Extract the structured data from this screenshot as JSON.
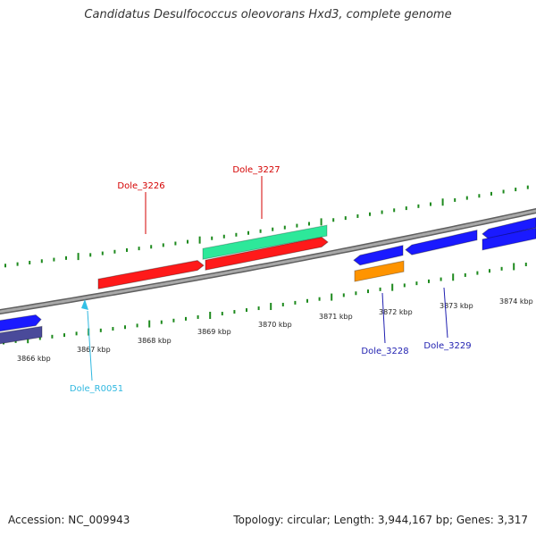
{
  "title": "Candidatus Desulfococcus oleovorans Hxd3, complete genome",
  "footer": {
    "accession": "Accession: NC_009943",
    "summary": "Topology: circular; Length: 3,944,167 bp; Genes: 3,317"
  },
  "colors": {
    "backbone": "#8a8a8a",
    "tick": "#1e8a1e",
    "red_gene": "#ff1a1a",
    "teal_gene": "#2de89a",
    "blue_gene": "#1a1aff",
    "navy_gene": "#4a4a9a",
    "orange_gene": "#ff9400",
    "rna_marker": "#33c0e6",
    "red_label": "#d40000",
    "blue_label": "#1f1fb0",
    "cyan_label": "#30b8e0"
  },
  "chart_data": {
    "type": "genome-map",
    "topology": "circular",
    "scale_unit": "kbp",
    "scale_labels": [
      "3866 kbp",
      "3867 kbp",
      "3868 kbp",
      "3869 kbp",
      "3870 kbp",
      "3871 kbp",
      "3872 kbp",
      "3873 kbp",
      "3874 kbp"
    ],
    "gene_labels": [
      {
        "name": "Dole_3226",
        "color": "red_label"
      },
      {
        "name": "Dole_3227",
        "color": "red_label"
      },
      {
        "name": "Dole_3228",
        "color": "blue_label"
      },
      {
        "name": "Dole_3229",
        "color": "blue_label"
      },
      {
        "name": "Dole_R0051",
        "color": "cyan_label"
      }
    ]
  }
}
